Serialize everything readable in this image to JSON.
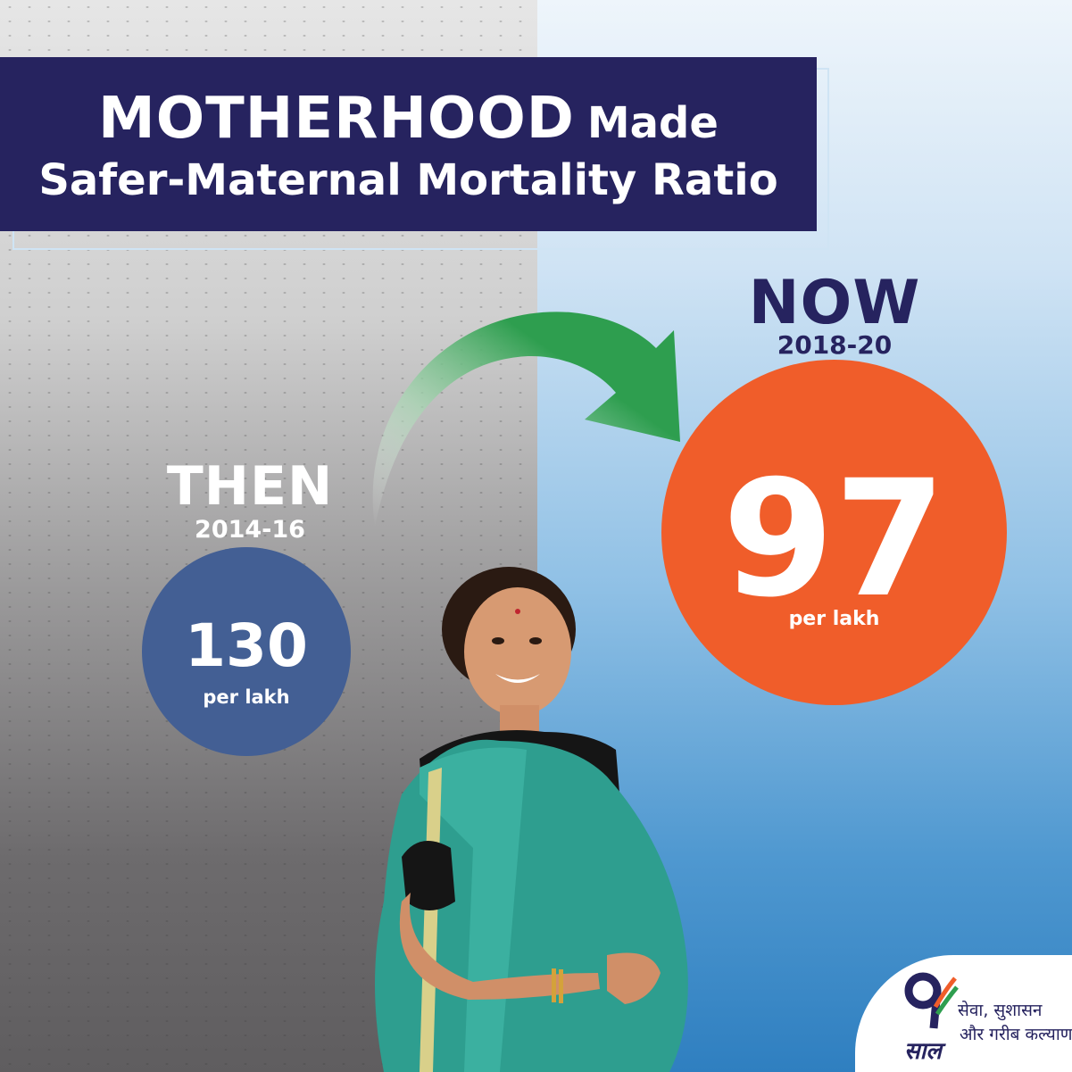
{
  "header": {
    "title_bold": "MOTHERHOOD",
    "title_rest": "Made",
    "title_line2": "Safer-Maternal Mortality Ratio"
  },
  "then": {
    "label": "THEN",
    "period": "2014-16",
    "value": "130",
    "unit": "per lakh",
    "color": "#435f94"
  },
  "now": {
    "label": "NOW",
    "period": "2018-20",
    "value": "97",
    "unit": "per lakh",
    "color": "#f05d2a"
  },
  "logo": {
    "numeral": "9",
    "saal": "साल",
    "line1": "सेवा, सुशासन",
    "line2": "और गरीब कल्याण"
  },
  "colors": {
    "title_bg": "#26235f",
    "arrow": "#2e9e4f"
  }
}
